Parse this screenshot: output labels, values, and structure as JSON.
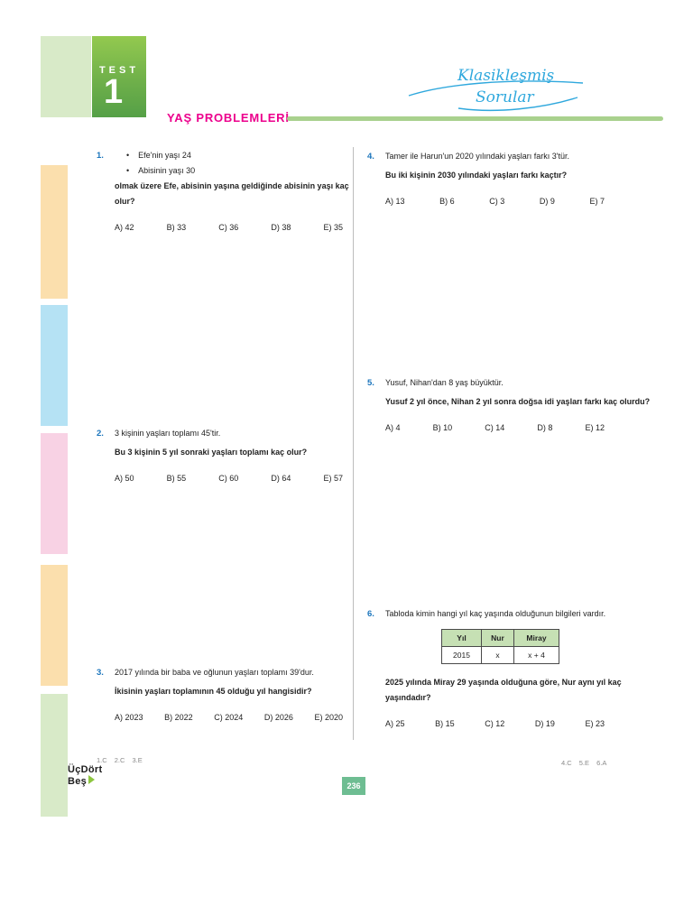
{
  "header": {
    "test_label": "TEST",
    "test_number": "1",
    "title": "YAŞ PROBLEMLERİ",
    "brand_line1": "Klasikleşmiş",
    "brand_line2": "Sorular"
  },
  "colors": {
    "accent_green": "#8DC63F",
    "title_pink": "#EC008C",
    "question_number_blue": "#1B75BC",
    "brand_blue": "#2FA8DD",
    "table_header_green": "#C6E0B4",
    "page_badge_green": "#6EBD92"
  },
  "questions": [
    {
      "number": "1.",
      "bullets": [
        "Efe'nin yaşı 24",
        "Abisinin yaşı 30"
      ],
      "stem": "olmak üzere Efe, abisinin yaşına geldiğinde abisinin yaşı kaç olur?",
      "options": [
        "A) 42",
        "B) 33",
        "C) 36",
        "D) 38",
        "E) 35"
      ]
    },
    {
      "number": "2.",
      "intro": "3 kişinin yaşları toplamı 45'tir.",
      "stem": "Bu 3 kişinin 5 yıl sonraki yaşları toplamı kaç olur?",
      "options": [
        "A) 50",
        "B) 55",
        "C) 60",
        "D) 64",
        "E) 57"
      ]
    },
    {
      "number": "3.",
      "intro": "2017 yılında bir baba ve oğlunun yaşları toplamı 39'dur.",
      "stem": "İkisinin yaşları toplamının 45 olduğu yıl hangisidir?",
      "options": [
        "A) 2023",
        "B) 2022",
        "C) 2024",
        "D) 2026",
        "E) 2020"
      ]
    },
    {
      "number": "4.",
      "intro": "Tamer ile Harun'un 2020 yılındaki yaşları farkı 3'tür.",
      "stem": "Bu iki kişinin 2030 yılındaki yaşları farkı kaçtır?",
      "options": [
        "A) 13",
        "B) 6",
        "C) 3",
        "D) 9",
        "E) 7"
      ]
    },
    {
      "number": "5.",
      "intro": "Yusuf, Nihan'dan 8 yaş büyüktür.",
      "stem": "Yusuf 2 yıl önce, Nihan 2 yıl sonra doğsa idi yaşları farkı kaç olurdu?",
      "options": [
        "A) 4",
        "B) 10",
        "C) 14",
        "D) 8",
        "E) 12"
      ]
    },
    {
      "number": "6.",
      "intro": "Tabloda kimin hangi yıl kaç yaşında olduğunun bilgileri vardır.",
      "table": {
        "headers": [
          "Yıl",
          "Nur",
          "Miray"
        ],
        "rows": [
          [
            "2015",
            "x",
            "x + 4"
          ]
        ]
      },
      "stem": "2025 yılında Miray 29 yaşında olduğuna göre, Nur aynı yıl kaç yaşındadır?",
      "options": [
        "A) 25",
        "B) 15",
        "C) 12",
        "D) 19",
        "E) 23"
      ]
    }
  ],
  "footer": {
    "answer_key_left": "1.C 2.C 3.E",
    "answer_key_right": "4.C 5.E 6.A",
    "logo_line1": "ÜçDört",
    "logo_line2": "Beş",
    "page_number": "236"
  }
}
